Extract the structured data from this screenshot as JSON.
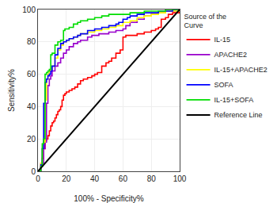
{
  "chart_data": {
    "type": "line",
    "xlabel": "100% - Specificity%",
    "ylabel": "Sensitivity%",
    "xlim": [
      0,
      100
    ],
    "ylim": [
      0,
      100
    ],
    "xticks": [
      0,
      20,
      40,
      60,
      80,
      100
    ],
    "yticks": [
      0,
      20,
      40,
      60,
      80,
      100
    ],
    "grid": true,
    "legend": "right",
    "legend_title": "Source of the\nCurve",
    "series": [
      {
        "name": "IL-15",
        "color": "#ff0000",
        "line_style": "steps",
        "x": [
          0,
          2,
          3,
          4,
          5,
          6,
          7,
          8,
          9,
          10,
          11,
          12,
          13,
          14,
          15,
          16,
          17,
          18,
          19,
          20,
          22,
          24,
          26,
          28,
          30,
          32,
          35,
          38,
          40,
          42,
          45,
          48,
          50,
          52,
          55,
          58,
          60,
          62,
          65,
          70,
          75,
          80,
          83,
          85,
          87,
          90,
          92,
          95,
          100
        ],
        "values": [
          0,
          5,
          8,
          14,
          19,
          20,
          22,
          25,
          28,
          30,
          31,
          33,
          35,
          37,
          38,
          40,
          44,
          47,
          48,
          49,
          50,
          51,
          52,
          54,
          56,
          57,
          58,
          59,
          60,
          61,
          65,
          67,
          68,
          70,
          73,
          75,
          83,
          84,
          84,
          85,
          86,
          87,
          88,
          89,
          94,
          95,
          97,
          98,
          100
        ]
      },
      {
        "name": "APACHE2",
        "color": "#9900cc",
        "line_style": "steps",
        "x": [
          0,
          2,
          3,
          4,
          5,
          6,
          7,
          8,
          9,
          10,
          12,
          14,
          16,
          18,
          20,
          22,
          25,
          28,
          30,
          35,
          38,
          40,
          43,
          46,
          50,
          55,
          60,
          62,
          65,
          70,
          75,
          80,
          85,
          90,
          95,
          100
        ],
        "values": [
          0,
          3,
          5,
          14,
          18,
          42,
          53,
          57,
          59,
          62,
          65,
          67,
          70,
          73,
          75,
          77,
          79,
          80,
          81,
          83,
          84,
          84,
          85,
          85,
          86,
          87,
          88,
          90,
          92,
          94,
          96,
          97,
          98,
          99,
          99,
          100
        ]
      },
      {
        "name": "IL-15+APACHE2",
        "color": "#ffff00",
        "line_style": "steps",
        "x": [
          0,
          2,
          3,
          4,
          5,
          6,
          7,
          8,
          9,
          10,
          12,
          14,
          16,
          18,
          20,
          22,
          25,
          28,
          30,
          35,
          40,
          45,
          50,
          55,
          60,
          65,
          70,
          75,
          80,
          85,
          90,
          95,
          100
        ],
        "values": [
          0,
          5,
          14,
          18,
          44,
          57,
          60,
          62,
          63,
          65,
          70,
          75,
          78,
          80,
          81,
          82,
          83,
          84,
          85,
          86,
          87,
          88,
          89,
          90,
          92,
          93,
          95,
          96,
          97,
          98,
          99,
          99,
          100
        ]
      },
      {
        "name": "SOFA",
        "color": "#0000ff",
        "line_style": "steps",
        "x": [
          0,
          2,
          3,
          4,
          5,
          6,
          7,
          8,
          9,
          10,
          12,
          14,
          16,
          18,
          20,
          22,
          25,
          28,
          30,
          35,
          40,
          45,
          50,
          55,
          57,
          60,
          63,
          65,
          70,
          75,
          80,
          85,
          90,
          95,
          100
        ],
        "values": [
          0,
          4,
          14,
          42,
          55,
          57,
          59,
          60,
          62,
          65,
          72,
          76,
          79,
          80,
          81,
          82,
          83,
          84,
          85,
          87,
          88,
          89,
          90,
          91,
          92,
          94,
          95,
          96,
          97,
          98,
          98,
          99,
          99,
          100,
          100
        ]
      },
      {
        "name": "IL-15+SOFA",
        "color": "#00dd00",
        "line_style": "steps",
        "x": [
          0,
          2,
          3,
          4,
          5,
          6,
          7,
          8,
          9,
          10,
          12,
          14,
          16,
          18,
          19,
          20,
          22,
          25,
          28,
          30,
          35,
          40,
          45,
          50,
          55,
          60,
          65,
          70,
          75,
          80,
          85,
          90,
          95,
          100
        ],
        "values": [
          0,
          3,
          17,
          20,
          60,
          61,
          62,
          63,
          72,
          73,
          78,
          80,
          81,
          87,
          88,
          88,
          89,
          91,
          92,
          93,
          94,
          95,
          96,
          97,
          97,
          97,
          98,
          98,
          99,
          99,
          99,
          100,
          100,
          100
        ]
      },
      {
        "name": "Reference Line",
        "color": "#000000",
        "line_style": "solid",
        "x": [
          0,
          100
        ],
        "values": [
          0,
          100
        ]
      }
    ]
  }
}
